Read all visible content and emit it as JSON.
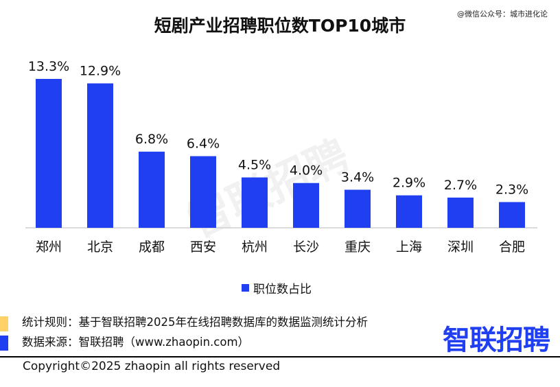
{
  "chart_data": {
    "type": "bar",
    "title": "短剧产业招聘职位数TOP10城市",
    "categories": [
      "郑州",
      "北京",
      "成都",
      "西安",
      "杭州",
      "长沙",
      "重庆",
      "上海",
      "深圳",
      "合肥"
    ],
    "values": [
      13.3,
      12.9,
      6.8,
      6.4,
      4.5,
      4.0,
      3.4,
      2.9,
      2.7,
      2.3
    ],
    "labels": [
      "13.3%",
      "12.9%",
      "6.8%",
      "6.4%",
      "4.5%",
      "4.0%",
      "3.4%",
      "2.9%",
      "2.7%",
      "2.3%"
    ],
    "series_name": "职位数占比",
    "xlabel": "",
    "ylabel": "",
    "ylim": [
      0,
      14
    ],
    "grid": false,
    "legend": "bottom-center",
    "bar_color": "#1f3ff0"
  },
  "watermark": "@微信公众号：城市进化论",
  "background_watermark": "智联招聘",
  "notes": {
    "rule": "统计规则：基于智联招聘2025年在线招聘数据库的数据监测统计分析",
    "source": "数据来源：智联招聘（www.zhaopin.com）",
    "rule_color": "#ffd166",
    "source_color": "#1f3ff0"
  },
  "logo": "智联招聘",
  "copyright": "Copyright©2025 zhaopin all rights reserved"
}
